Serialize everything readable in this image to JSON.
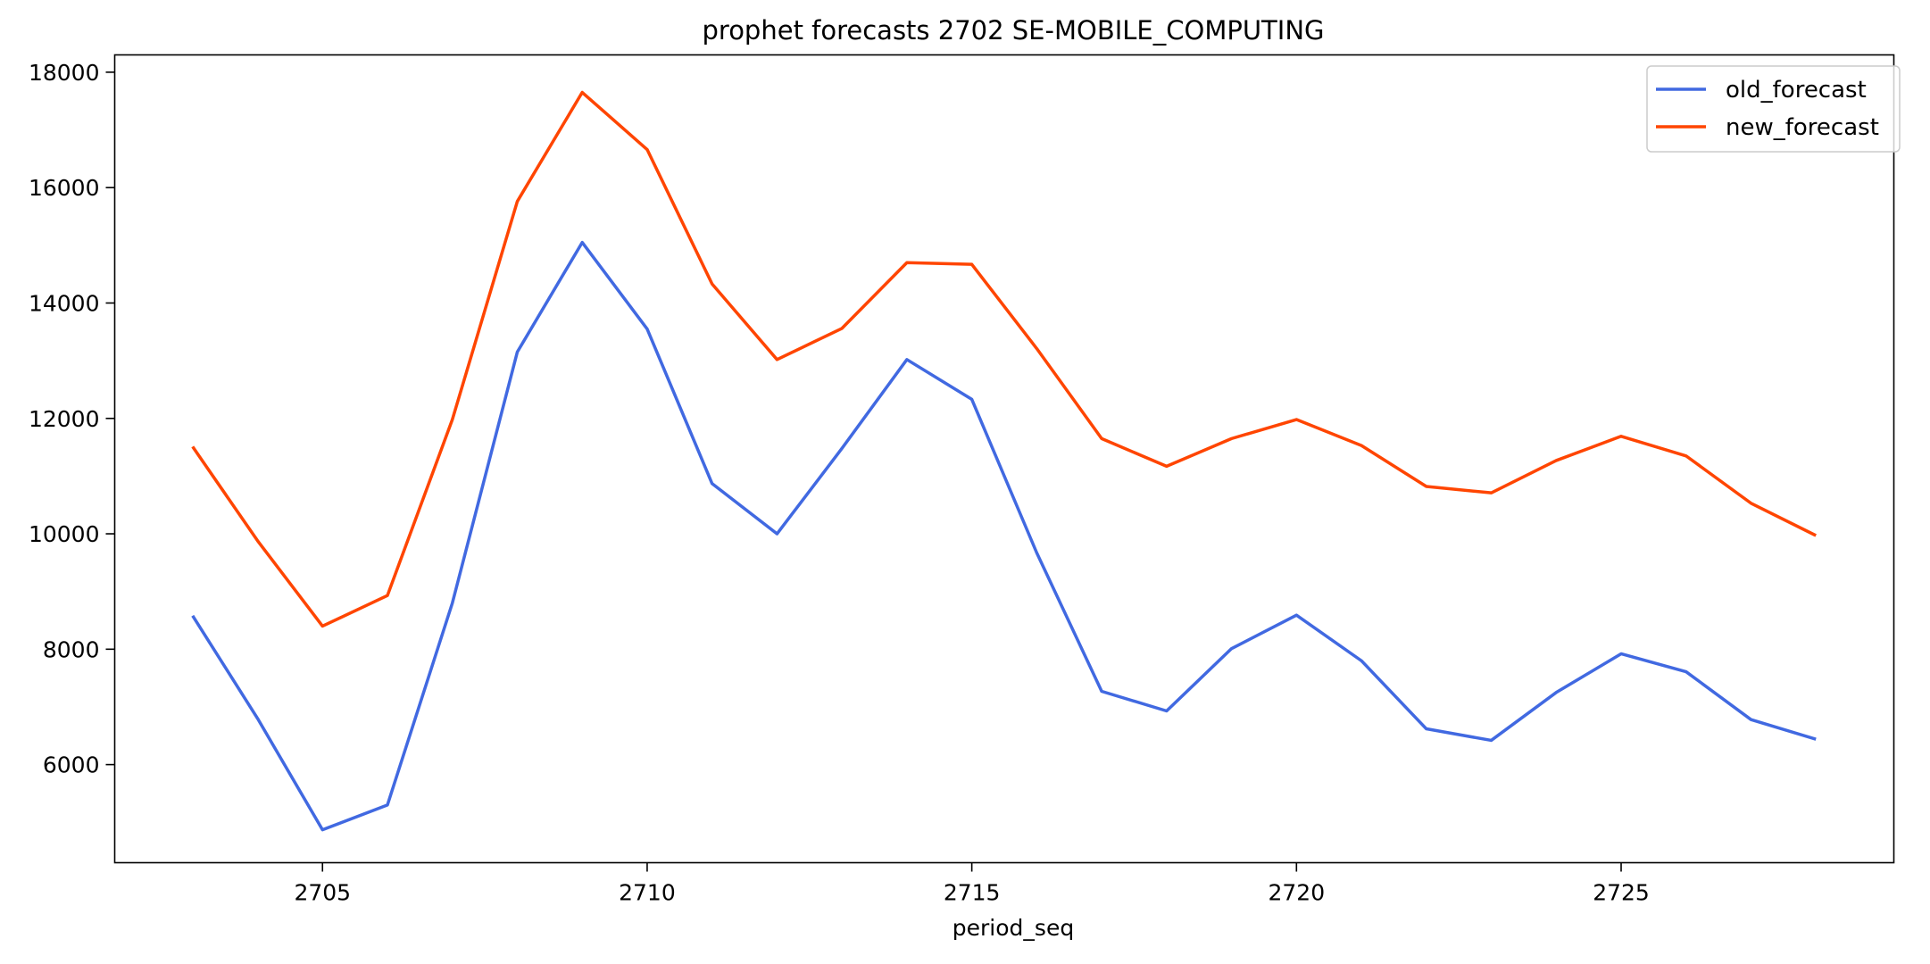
{
  "chart_data": {
    "type": "line",
    "title": "prophet forecasts 2702 SE-MOBILE_COMPUTING",
    "xlabel": "period_seq",
    "ylabel": "",
    "x": [
      2703,
      2704,
      2705,
      2706,
      2707,
      2708,
      2709,
      2710,
      2711,
      2712,
      2713,
      2714,
      2715,
      2716,
      2717,
      2718,
      2719,
      2720,
      2721,
      2722,
      2723,
      2724,
      2725,
      2726,
      2727,
      2728
    ],
    "xlim": [
      2701.8,
      2729.2
    ],
    "ylim": [
      4300,
      18300
    ],
    "xticks": [
      2705,
      2710,
      2715,
      2720,
      2725
    ],
    "yticks": [
      6000,
      8000,
      10000,
      12000,
      14000,
      16000,
      18000
    ],
    "grid": false,
    "legend_position": "top-right",
    "series": [
      {
        "name": "old_forecast",
        "color": "#4169E1",
        "values": [
          8580,
          6800,
          4870,
          5300,
          8800,
          13150,
          15050,
          13550,
          10870,
          10000,
          11480,
          13020,
          12330,
          9670,
          7270,
          6930,
          8010,
          8590,
          7800,
          6620,
          6420,
          7250,
          7920,
          7610,
          6780,
          6440
        ]
      },
      {
        "name": "new_forecast",
        "color": "#FF4500",
        "values": [
          11510,
          9880,
          8400,
          8930,
          11980,
          15760,
          17650,
          16660,
          14330,
          13020,
          13560,
          14700,
          14670,
          13210,
          11650,
          11170,
          11650,
          11980,
          11530,
          10820,
          10710,
          11270,
          11690,
          11350,
          10530,
          9970
        ]
      }
    ]
  }
}
